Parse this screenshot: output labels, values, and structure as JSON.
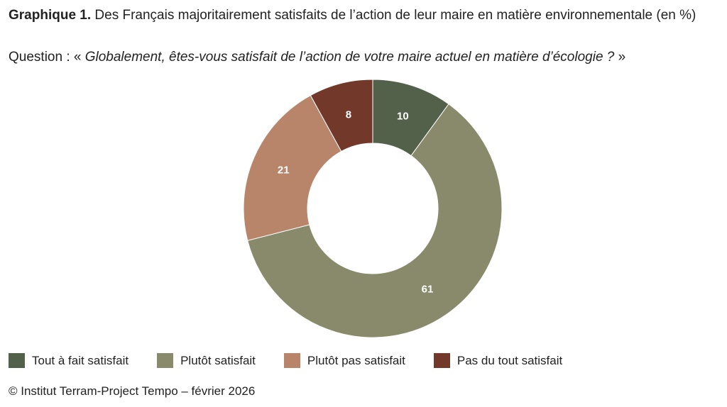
{
  "chart_data": {
    "type": "pie",
    "variant": "donut",
    "title_prefix": "Graphique 1.",
    "title": "Des Français majoritairement satisfaits de l’action de leur maire en matière environnementale (en %)",
    "question_prefix": "Question : «",
    "question": "Globalement, êtes-vous satisfait de l’action de votre maire actuel en matière d’écologie ?",
    "question_suffix": "»",
    "categories": [
      "Tout à fait satisfait",
      "Plutôt satisfait",
      "Plutôt pas satisfait",
      "Pas du tout satisfait"
    ],
    "values": [
      10,
      61,
      21,
      8
    ],
    "colors": [
      "#53614b",
      "#898a6b",
      "#b8846a",
      "#723829"
    ],
    "legend_position": "bottom",
    "source": "© Institut Terram-Project Tempo – février 2026"
  }
}
